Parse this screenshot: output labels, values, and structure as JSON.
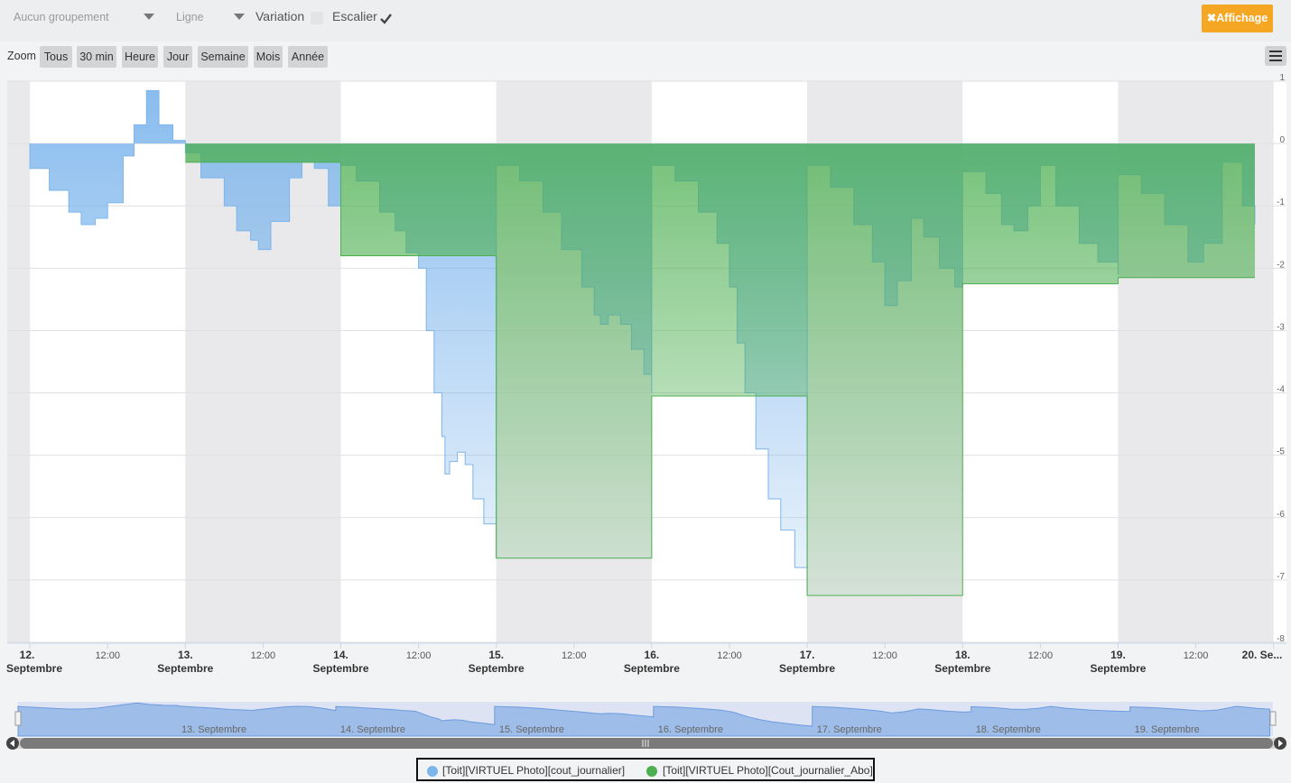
{
  "toolbar": {
    "grouping_value": "Aucun groupement",
    "type_value": "Ligne",
    "variation_label": "Variation",
    "stair_label": "Escalier",
    "display_button": "Affichage"
  },
  "zoom": {
    "label": "Zoom",
    "buttons": [
      {
        "label": "Tous",
        "state": "active"
      },
      {
        "label": "30 min",
        "state": "enabled"
      },
      {
        "label": "Heure",
        "state": "enabled"
      },
      {
        "label": "Jour",
        "state": "enabled"
      },
      {
        "label": "Semaine",
        "state": "enabled"
      },
      {
        "label": "Mois",
        "state": "disabled"
      },
      {
        "label": "Année",
        "state": "disabled"
      }
    ]
  },
  "navigator": {
    "labels": [
      "13. Septembre",
      "14. Septembre",
      "15. Septembre",
      "16. Septembre",
      "17. Septembre",
      "18. Septembre",
      "19. Septembre"
    ]
  },
  "chart_data": {
    "type": "area",
    "step": true,
    "legend_position": "bottom",
    "ylim": [
      -8,
      1
    ],
    "y_ticks": [
      "1",
      "0",
      "-1",
      "-2",
      "-3",
      "-4",
      "-5",
      "-6",
      "-7",
      "-8"
    ],
    "xlim": [
      "2025-09-11 20:30",
      "2025-09-20 02:00"
    ],
    "x_ticks_major": [
      {
        "date": "12.",
        "month": "Septembre"
      },
      {
        "date": "13.",
        "month": "Septembre"
      },
      {
        "date": "14.",
        "month": "Septembre"
      },
      {
        "date": "15.",
        "month": "Septembre"
      },
      {
        "date": "16.",
        "month": "Septembre"
      },
      {
        "date": "17.",
        "month": "Septembre"
      },
      {
        "date": "18.",
        "month": "Septembre"
      },
      {
        "date": "19.",
        "month": "Septembre"
      },
      {
        "date": "20. Se...",
        "month": ""
      }
    ],
    "x_tick_minor_label": "12:00",
    "series": [
      {
        "name": "[Toit][VIRTUEL Photo][cout_journalier]",
        "color": "#7cb5ec",
        "points": [
          [
            12.0,
            0
          ],
          [
            12.0,
            -0.4
          ],
          [
            12.125,
            -0.75
          ],
          [
            12.25,
            -1.1
          ],
          [
            12.33,
            -1.3
          ],
          [
            12.42,
            -1.2
          ],
          [
            12.5,
            -0.95
          ],
          [
            12.6,
            -0.2
          ],
          [
            12.67,
            0.3
          ],
          [
            12.75,
            0.85
          ],
          [
            12.83,
            0.3
          ],
          [
            12.92,
            0.05
          ],
          [
            13.0,
            0
          ],
          [
            13.0,
            -0.15
          ],
          [
            13.1,
            -0.55
          ],
          [
            13.25,
            -1.0
          ],
          [
            13.33,
            -1.4
          ],
          [
            13.42,
            -1.55
          ],
          [
            13.47,
            -1.7
          ],
          [
            13.55,
            -1.25
          ],
          [
            13.67,
            -0.55
          ],
          [
            13.75,
            -0.3
          ],
          [
            13.83,
            -0.4
          ],
          [
            13.92,
            -1.0
          ],
          [
            14.0,
            -1.75
          ],
          [
            14.0,
            -0.35
          ],
          [
            14.1,
            -0.6
          ],
          [
            14.25,
            -1.1
          ],
          [
            14.35,
            -1.4
          ],
          [
            14.42,
            -1.75
          ],
          [
            14.5,
            -2.0
          ],
          [
            14.55,
            -3.0
          ],
          [
            14.6,
            -4.0
          ],
          [
            14.65,
            -4.7
          ],
          [
            14.67,
            -5.3
          ],
          [
            14.7,
            -5.1
          ],
          [
            14.75,
            -4.95
          ],
          [
            14.8,
            -5.15
          ],
          [
            14.85,
            -5.7
          ],
          [
            14.92,
            -6.1
          ],
          [
            15.0,
            -6.65
          ],
          [
            15.0,
            -0.35
          ],
          [
            15.15,
            -0.6
          ],
          [
            15.3,
            -1.1
          ],
          [
            15.42,
            -1.7
          ],
          [
            15.55,
            -2.3
          ],
          [
            15.63,
            -2.75
          ],
          [
            15.67,
            -2.9
          ],
          [
            15.72,
            -2.75
          ],
          [
            15.8,
            -2.9
          ],
          [
            15.87,
            -3.3
          ],
          [
            15.95,
            -3.7
          ],
          [
            16.0,
            -4.0
          ],
          [
            16.0,
            -0.35
          ],
          [
            16.15,
            -0.6
          ],
          [
            16.3,
            -1.1
          ],
          [
            16.42,
            -1.6
          ],
          [
            16.5,
            -2.3
          ],
          [
            16.55,
            -3.2
          ],
          [
            16.6,
            -4.0
          ],
          [
            16.67,
            -4.9
          ],
          [
            16.75,
            -5.7
          ],
          [
            16.83,
            -6.2
          ],
          [
            16.92,
            -6.8
          ],
          [
            17.0,
            -7.2
          ],
          [
            17.0,
            -0.35
          ],
          [
            17.15,
            -0.7
          ],
          [
            17.3,
            -1.3
          ],
          [
            17.42,
            -1.9
          ],
          [
            17.5,
            -2.6
          ],
          [
            17.58,
            -2.2
          ],
          [
            17.67,
            -1.2
          ],
          [
            17.75,
            -1.5
          ],
          [
            17.85,
            -2.0
          ],
          [
            17.95,
            -2.3
          ],
          [
            18.0,
            -2.2
          ],
          [
            18.0,
            -0.45
          ],
          [
            18.15,
            -0.8
          ],
          [
            18.25,
            -1.3
          ],
          [
            18.33,
            -1.4
          ],
          [
            18.42,
            -1.0
          ],
          [
            18.5,
            -0.35
          ],
          [
            18.6,
            -1.0
          ],
          [
            18.75,
            -1.6
          ],
          [
            18.87,
            -1.9
          ],
          [
            19.0,
            -2.1
          ],
          [
            19.0,
            -0.5
          ],
          [
            19.15,
            -0.8
          ],
          [
            19.3,
            -1.3
          ],
          [
            19.45,
            -1.9
          ],
          [
            19.55,
            -1.6
          ],
          [
            19.67,
            -0.3
          ],
          [
            19.8,
            -1.0
          ],
          [
            19.88,
            -1.3
          ]
        ]
      },
      {
        "name": "[Toit][VIRTUEL Photo][Cout_journalier_Abo]",
        "color": "#4caf50",
        "points": [
          [
            13.0,
            -0.3
          ],
          [
            14.0,
            -0.3
          ],
          [
            14.0,
            -1.8
          ],
          [
            15.0,
            -1.8
          ],
          [
            15.0,
            -6.65
          ],
          [
            16.0,
            -6.65
          ],
          [
            16.0,
            -4.05
          ],
          [
            17.0,
            -4.05
          ],
          [
            17.0,
            -7.25
          ],
          [
            18.0,
            -7.25
          ],
          [
            18.0,
            -2.25
          ],
          [
            19.0,
            -2.25
          ],
          [
            19.0,
            -2.15
          ],
          [
            19.88,
            -2.15
          ]
        ]
      }
    ]
  }
}
